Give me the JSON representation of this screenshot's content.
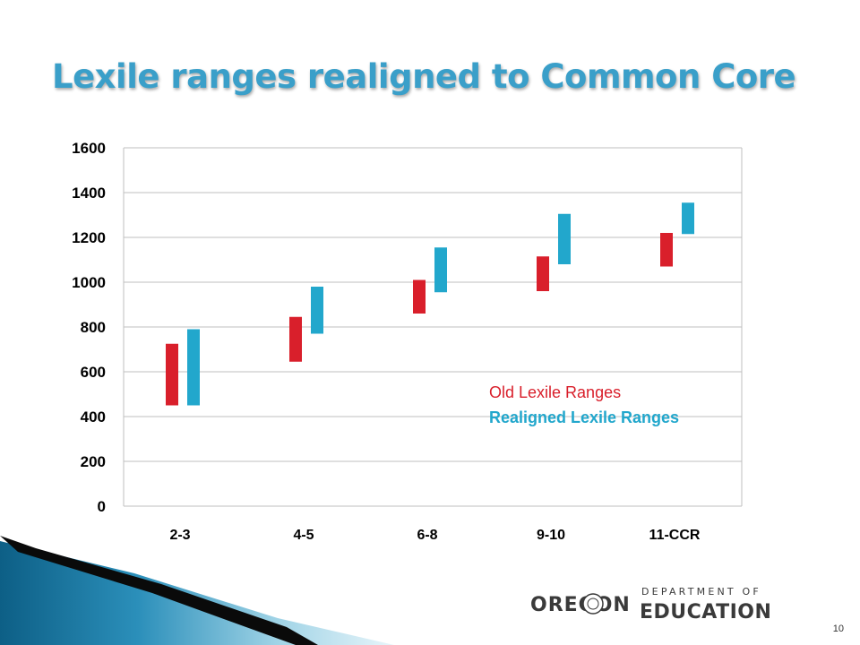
{
  "slide": {
    "title": "Lexile ranges realigned to Common Core",
    "page_number": "10"
  },
  "logo": {
    "state": "OREGON",
    "department": "DEPARTMENT OF",
    "division": "EDUCATION"
  },
  "colors": {
    "old": "#d91f2b",
    "realigned": "#22a7cc",
    "title": "#3a9fc9",
    "grid": "#bfbfbf"
  },
  "chart_data": {
    "type": "bar",
    "subtype": "floating-range",
    "title": "",
    "xlabel": "",
    "ylabel": "",
    "ylim": [
      0,
      1600
    ],
    "y_ticks": [
      0,
      200,
      400,
      600,
      800,
      1000,
      1200,
      1400,
      1600
    ],
    "grid": true,
    "legend_position": "right",
    "categories": [
      "2-3",
      "4-5",
      "6-8",
      "9-10",
      "11-CCR"
    ],
    "series": [
      {
        "name": "Old Lexile Ranges",
        "color": "#d91f2b",
        "ranges": [
          [
            450,
            725
          ],
          [
            645,
            845
          ],
          [
            860,
            1010
          ],
          [
            960,
            1115
          ],
          [
            1070,
            1220
          ]
        ]
      },
      {
        "name": "Realigned Lexile Ranges",
        "color": "#22a7cc",
        "ranges": [
          [
            450,
            790
          ],
          [
            770,
            980
          ],
          [
            955,
            1155
          ],
          [
            1080,
            1305
          ],
          [
            1215,
            1355
          ]
        ]
      }
    ]
  }
}
